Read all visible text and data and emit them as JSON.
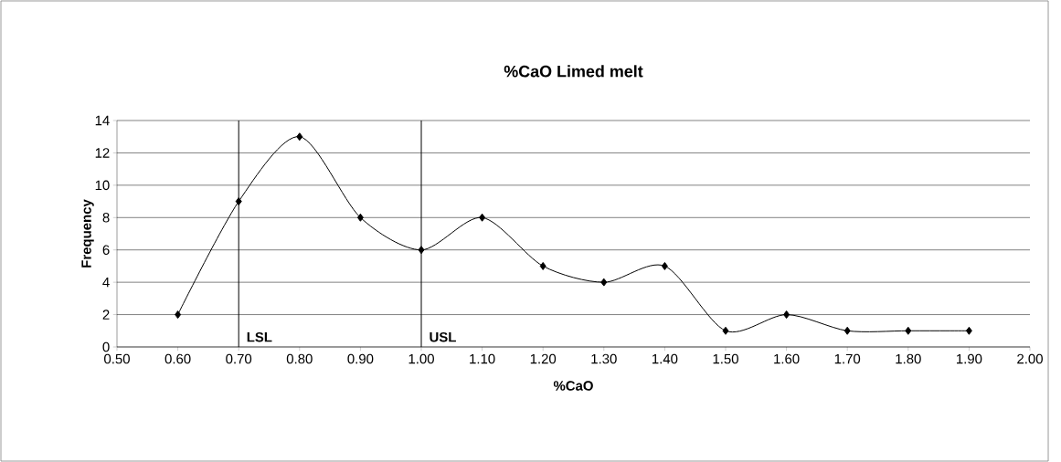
{
  "chart_data": {
    "type": "line",
    "title": "%CaO Limed melt",
    "xlabel": "%CaO",
    "ylabel": "Frequency",
    "x": [
      0.6,
      0.7,
      0.8,
      0.9,
      1.0,
      1.1,
      1.2,
      1.3,
      1.4,
      1.5,
      1.6,
      1.7,
      1.8,
      1.9
    ],
    "series": [
      {
        "color": "#000000",
        "values": [
          2,
          9,
          13,
          8,
          6,
          8,
          5,
          4,
          5,
          1,
          2,
          1,
          1,
          1
        ]
      }
    ],
    "xlim": [
      0.5,
      2.0
    ],
    "xticks": [
      {
        "value": 0.5,
        "label": "0.50"
      },
      {
        "value": 0.6,
        "label": "0.60"
      },
      {
        "value": 0.7,
        "label": "0.70"
      },
      {
        "value": 0.8,
        "label": "0.80"
      },
      {
        "value": 0.9,
        "label": "0.90"
      },
      {
        "value": 1.0,
        "label": "1.00"
      },
      {
        "value": 1.1,
        "label": "1.10"
      },
      {
        "value": 1.2,
        "label": "1.20"
      },
      {
        "value": 1.3,
        "label": "1.30"
      },
      {
        "value": 1.4,
        "label": "1.40"
      },
      {
        "value": 1.5,
        "label": "1.50"
      },
      {
        "value": 1.6,
        "label": "1.60"
      },
      {
        "value": 1.7,
        "label": "1.70"
      },
      {
        "value": 1.8,
        "label": "1.80"
      },
      {
        "value": 1.9,
        "label": "1.90"
      },
      {
        "value": 2.0,
        "label": "2.00"
      }
    ],
    "ylim": [
      0,
      14
    ],
    "yticks": [
      0,
      2,
      4,
      6,
      8,
      10,
      12,
      14
    ],
    "grid": "y",
    "marker": "diamond",
    "line_style": "solid",
    "ref_lines": [
      {
        "axis": "x",
        "value": 0.7,
        "label": "LSL"
      },
      {
        "axis": "x",
        "value": 1.0,
        "label": "USL"
      }
    ]
  }
}
